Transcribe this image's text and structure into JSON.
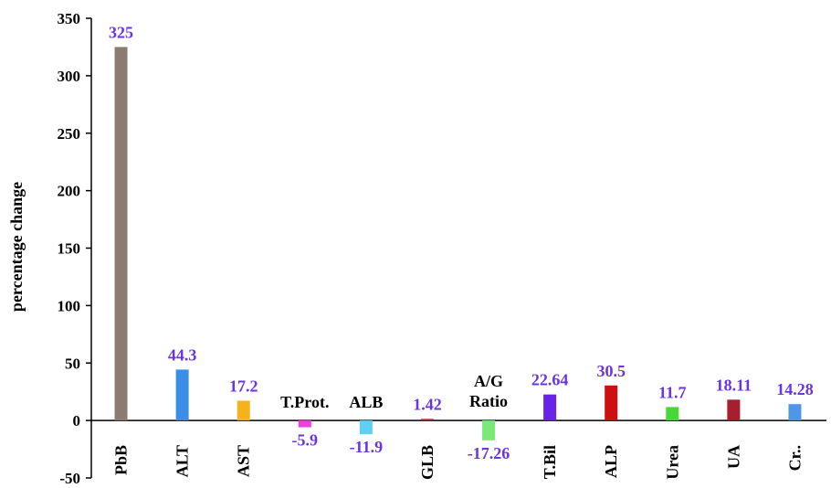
{
  "chart_data": {
    "type": "bar",
    "title": "",
    "xlabel": "",
    "ylabel": "percentage change",
    "ylim": [
      -50,
      350
    ],
    "yticks": [
      -50,
      0,
      50,
      100,
      150,
      200,
      250,
      300,
      350
    ],
    "grid": false,
    "legend": "none",
    "categories": [
      "PbB",
      "ALT",
      "AST",
      "",
      "",
      "GLB",
      "",
      "T.Bil",
      "ALP",
      "Urea",
      "UA",
      "Cr.."
    ],
    "inline_labels": [
      "",
      "",
      "",
      "T.Prot.",
      "ALB",
      "",
      "A/G Ratio",
      "",
      "",
      "",
      "",
      ""
    ],
    "values": [
      325,
      44.3,
      17.2,
      -5.9,
      -11.9,
      1.42,
      -17.26,
      22.64,
      30.5,
      11.7,
      18.11,
      14.28
    ],
    "data_labels": [
      "325",
      "44.3",
      "17.2",
      "-5.9",
      "-11.9",
      "1.42",
      "-17.26",
      "22.64",
      "30.5",
      "11.7",
      "18.11",
      "14.28"
    ],
    "colors": [
      "#8c7b72",
      "#3a8ee8",
      "#f5b21a",
      "#ee40dd",
      "#5fd0f0",
      "#cc1f3a",
      "#7de87a",
      "#6a22e8",
      "#cc1010",
      "#44d838",
      "#a61f2e",
      "#5096e8"
    ],
    "label_color": "#6a33e6"
  }
}
